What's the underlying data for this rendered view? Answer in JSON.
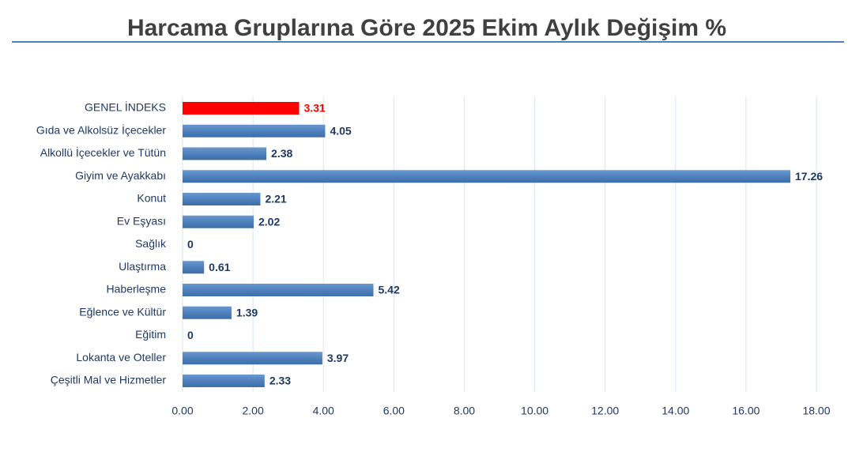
{
  "chart_data": {
    "type": "hbar",
    "title": "Harcama Gruplarına Göre 2025 Ekim Aylık Değişim %",
    "categories": [
      "GENEL İNDEKS",
      "Gıda ve Alkolsüz İçecekler",
      "Alkollü İçecekler ve Tütün",
      "Giyim ve Ayakkabı",
      "Konut",
      "Ev Eşyası",
      "Sağlık",
      "Ulaştırma",
      "Haberleşme",
      "Eğlence ve Kültür",
      "Eğitim",
      "Lokanta ve Oteller",
      "Çeşitli Mal ve Hizmetler"
    ],
    "values": [
      3.31,
      4.05,
      2.38,
      17.26,
      2.21,
      2.02,
      0,
      0.61,
      5.42,
      1.39,
      0,
      3.97,
      2.33
    ],
    "colors": [
      "#ff0000",
      "#4f81bd",
      "#4f81bd",
      "#4f81bd",
      "#4f81bd",
      "#4f81bd",
      "#4f81bd",
      "#4f81bd",
      "#4f81bd",
      "#4f81bd",
      "#4f81bd",
      "#4f81bd",
      "#4f81bd"
    ],
    "label_colors": [
      "#ff0000",
      "#1f3864",
      "#1f3864",
      "#1f3864",
      "#1f3864",
      "#1f3864",
      "#1f3864",
      "#1f3864",
      "#1f3864",
      "#1f3864",
      "#1f3864",
      "#1f3864",
      "#1f3864"
    ],
    "xlim": [
      0,
      18
    ],
    "xticks": [
      {
        "value": 0,
        "label": "0.00"
      },
      {
        "value": 2,
        "label": "2.00"
      },
      {
        "value": 4,
        "label": "4.00"
      },
      {
        "value": 6,
        "label": "6.00"
      },
      {
        "value": 8,
        "label": "8.00"
      },
      {
        "value": 10,
        "label": "10.00"
      },
      {
        "value": 12,
        "label": "12.00"
      },
      {
        "value": 14,
        "label": "14.00"
      },
      {
        "value": 16,
        "label": "16.00"
      },
      {
        "value": 18,
        "label": "18.00"
      }
    ],
    "grid": true
  }
}
